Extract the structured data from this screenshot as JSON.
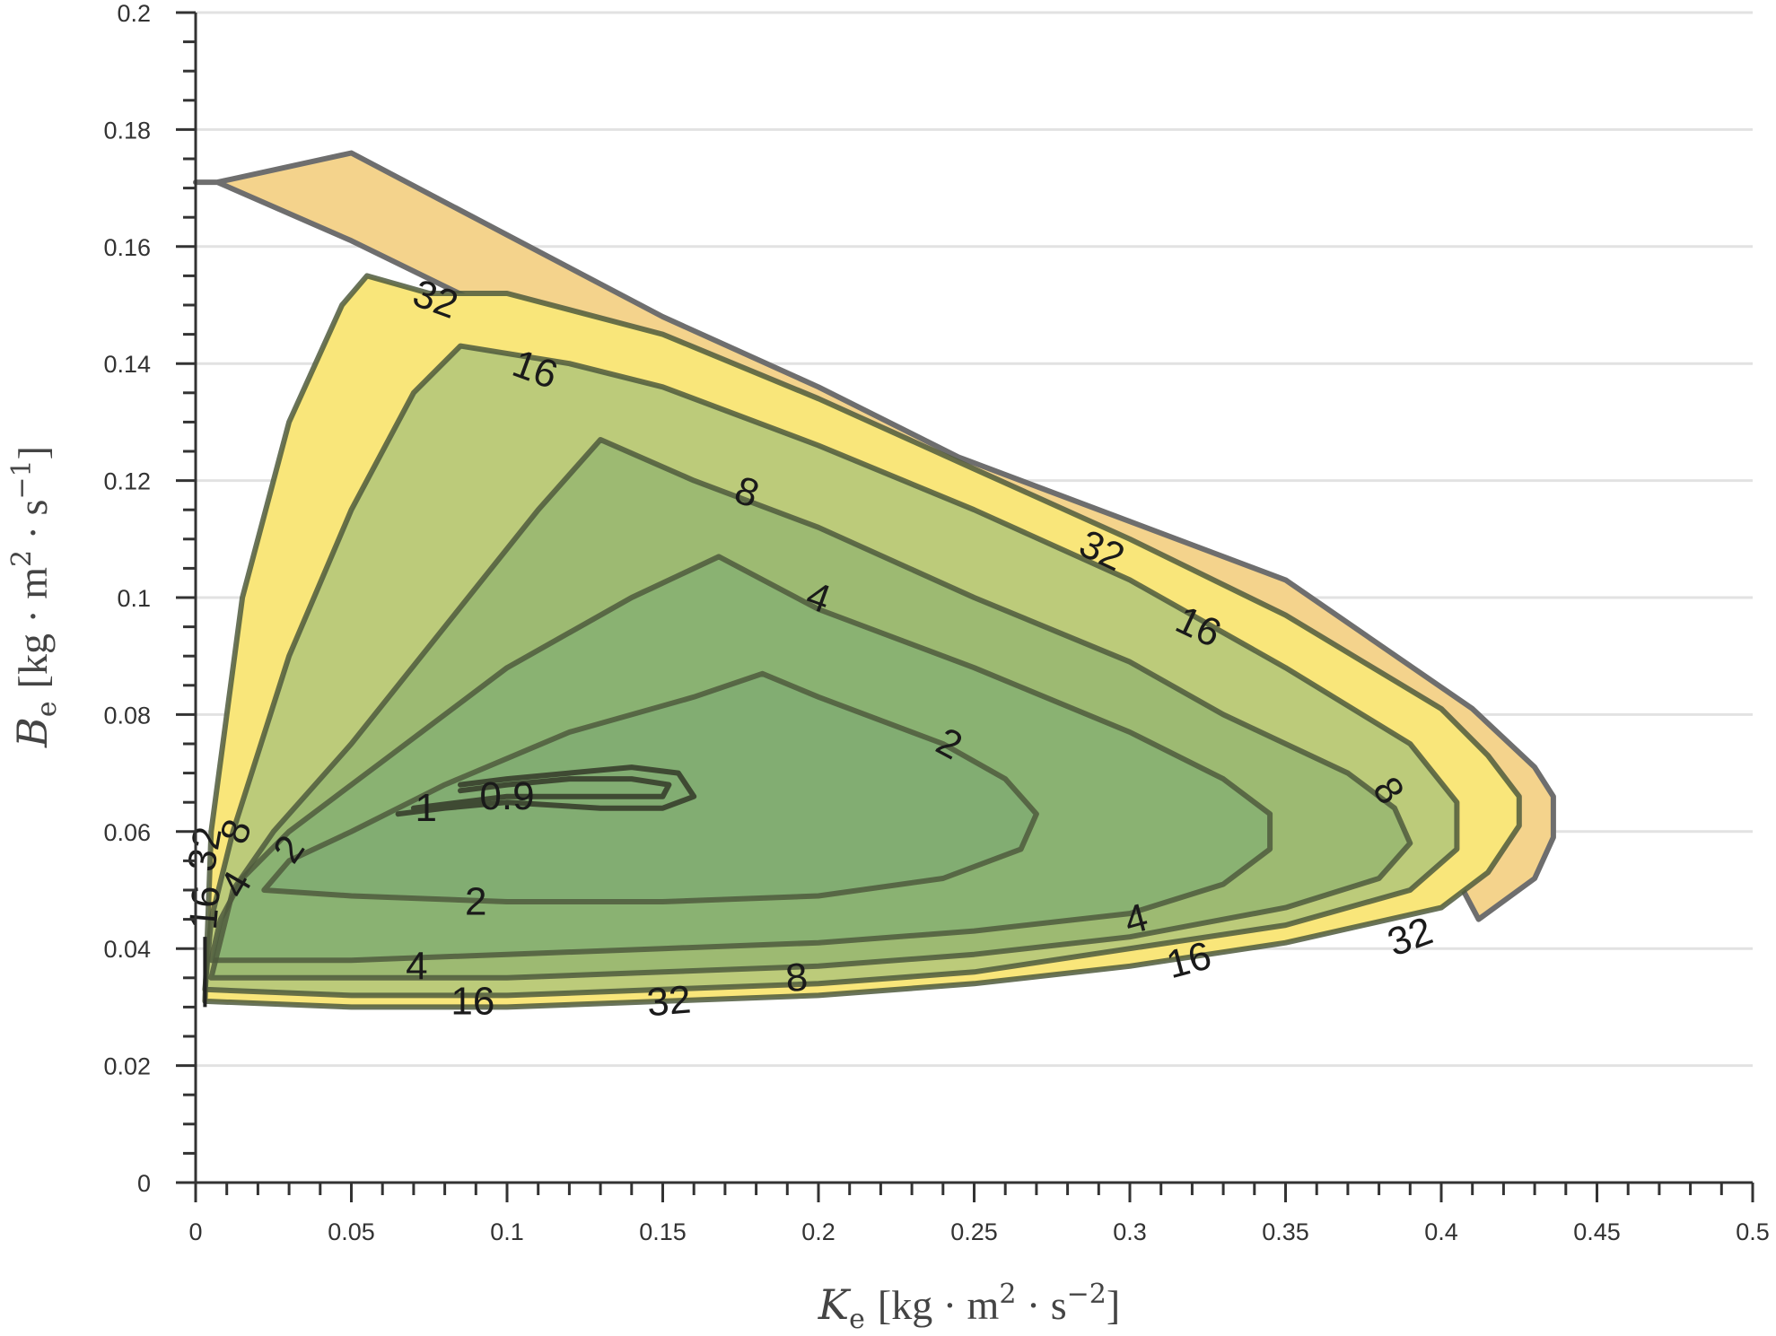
{
  "chart_data": {
    "type": "contour",
    "xlabel": {
      "symbol": "K",
      "sub": "e",
      "unit": "[kg · m",
      "sup1": "2",
      "mid": " · s",
      "sup2": "−2",
      "end": "]"
    },
    "ylabel": {
      "symbol": "B",
      "sub": "e",
      "unit": "[kg · m",
      "sup1": "2",
      "mid": " · s",
      "sup2": "−1",
      "end": "]"
    },
    "xlim": [
      0,
      0.5
    ],
    "ylim": [
      0,
      0.2
    ],
    "x_ticks": [
      "0",
      "0.05",
      "0.1",
      "0.15",
      "0.2",
      "0.25",
      "0.3",
      "0.35",
      "0.4",
      "0.45",
      "0.5"
    ],
    "y_ticks": [
      "0",
      "0.02",
      "0.04",
      "0.06",
      "0.08",
      "0.1",
      "0.12",
      "0.14",
      "0.16",
      "0.18",
      "0.2"
    ],
    "grid": "horizontal",
    "levels": [
      0.9,
      1,
      2,
      4,
      8,
      16,
      32
    ],
    "region_colors": {
      "outer": "#f4d38c",
      "band_32": "#f9e67a",
      "band_16": "#bccb7a",
      "band_8": "#9dba72",
      "band_4": "#8ab272",
      "inner": "#82ad72"
    },
    "contours": [
      {
        "id": "boundary",
        "fill": "outer",
        "points": [
          [
            0.0,
            0.171
          ],
          [
            0.007,
            0.171
          ],
          [
            0.05,
            0.161
          ],
          [
            0.1,
            0.148
          ],
          [
            0.15,
            0.135
          ],
          [
            0.2,
            0.121
          ],
          [
            0.245,
            0.107
          ],
          [
            0.3,
            0.092
          ],
          [
            0.35,
            0.075
          ],
          [
            0.4,
            0.057
          ],
          [
            0.412,
            0.045
          ],
          [
            0.43,
            0.052
          ],
          [
            0.436,
            0.059
          ],
          [
            0.436,
            0.066
          ],
          [
            0.43,
            0.071
          ],
          [
            0.41,
            0.081
          ],
          [
            0.35,
            0.103
          ],
          [
            0.3,
            0.113
          ],
          [
            0.245,
            0.124
          ],
          [
            0.2,
            0.136
          ],
          [
            0.15,
            0.148
          ],
          [
            0.1,
            0.162
          ],
          [
            0.05,
            0.176
          ],
          [
            0.007,
            0.171
          ]
        ]
      }
    ],
    "contour_lines": [
      {
        "level": "32",
        "fill": "band_32",
        "points": [
          [
            0.003,
            0.031
          ],
          [
            0.05,
            0.03
          ],
          [
            0.1,
            0.03
          ],
          [
            0.15,
            0.031
          ],
          [
            0.2,
            0.032
          ],
          [
            0.25,
            0.034
          ],
          [
            0.3,
            0.037
          ],
          [
            0.35,
            0.041
          ],
          [
            0.4,
            0.047
          ],
          [
            0.415,
            0.053
          ],
          [
            0.425,
            0.061
          ],
          [
            0.425,
            0.066
          ],
          [
            0.415,
            0.073
          ],
          [
            0.4,
            0.081
          ],
          [
            0.35,
            0.097
          ],
          [
            0.3,
            0.11
          ],
          [
            0.25,
            0.122
          ],
          [
            0.2,
            0.134
          ],
          [
            0.15,
            0.145
          ],
          [
            0.1,
            0.152
          ],
          [
            0.075,
            0.152
          ],
          [
            0.055,
            0.155
          ],
          [
            0.047,
            0.15
          ],
          [
            0.03,
            0.13
          ],
          [
            0.015,
            0.1
          ],
          [
            0.005,
            0.06
          ],
          [
            0.003,
            0.031
          ]
        ]
      },
      {
        "level": "16",
        "fill": "band_16",
        "points": [
          [
            0.003,
            0.033
          ],
          [
            0.05,
            0.032
          ],
          [
            0.1,
            0.032
          ],
          [
            0.15,
            0.033
          ],
          [
            0.2,
            0.034
          ],
          [
            0.25,
            0.036
          ],
          [
            0.3,
            0.04
          ],
          [
            0.35,
            0.044
          ],
          [
            0.39,
            0.05
          ],
          [
            0.405,
            0.057
          ],
          [
            0.405,
            0.065
          ],
          [
            0.39,
            0.075
          ],
          [
            0.35,
            0.088
          ],
          [
            0.3,
            0.103
          ],
          [
            0.25,
            0.115
          ],
          [
            0.2,
            0.126
          ],
          [
            0.15,
            0.136
          ],
          [
            0.12,
            0.14
          ],
          [
            0.085,
            0.143
          ],
          [
            0.07,
            0.135
          ],
          [
            0.05,
            0.115
          ],
          [
            0.03,
            0.09
          ],
          [
            0.012,
            0.06
          ],
          [
            0.005,
            0.045
          ],
          [
            0.003,
            0.033
          ]
        ]
      },
      {
        "level": "8",
        "fill": "band_8",
        "points": [
          [
            0.005,
            0.035
          ],
          [
            0.05,
            0.035
          ],
          [
            0.1,
            0.035
          ],
          [
            0.15,
            0.036
          ],
          [
            0.2,
            0.037
          ],
          [
            0.25,
            0.039
          ],
          [
            0.3,
            0.042
          ],
          [
            0.35,
            0.047
          ],
          [
            0.38,
            0.052
          ],
          [
            0.39,
            0.058
          ],
          [
            0.385,
            0.064
          ],
          [
            0.37,
            0.07
          ],
          [
            0.33,
            0.08
          ],
          [
            0.3,
            0.089
          ],
          [
            0.25,
            0.1
          ],
          [
            0.2,
            0.112
          ],
          [
            0.16,
            0.12
          ],
          [
            0.13,
            0.127
          ],
          [
            0.11,
            0.115
          ],
          [
            0.08,
            0.095
          ],
          [
            0.05,
            0.075
          ],
          [
            0.025,
            0.06
          ],
          [
            0.012,
            0.05
          ],
          [
            0.005,
            0.035
          ]
        ]
      },
      {
        "level": "4",
        "fill": "band_4",
        "points": [
          [
            0.005,
            0.038
          ],
          [
            0.05,
            0.038
          ],
          [
            0.1,
            0.039
          ],
          [
            0.15,
            0.04
          ],
          [
            0.2,
            0.041
          ],
          [
            0.25,
            0.043
          ],
          [
            0.3,
            0.046
          ],
          [
            0.33,
            0.051
          ],
          [
            0.345,
            0.057
          ],
          [
            0.345,
            0.063
          ],
          [
            0.33,
            0.069
          ],
          [
            0.3,
            0.077
          ],
          [
            0.25,
            0.088
          ],
          [
            0.2,
            0.098
          ],
          [
            0.168,
            0.107
          ],
          [
            0.14,
            0.1
          ],
          [
            0.1,
            0.088
          ],
          [
            0.06,
            0.072
          ],
          [
            0.03,
            0.06
          ],
          [
            0.015,
            0.052
          ],
          [
            0.008,
            0.045
          ],
          [
            0.005,
            0.038
          ]
        ]
      },
      {
        "level": "2",
        "fill": "inner",
        "points": [
          [
            0.022,
            0.05
          ],
          [
            0.05,
            0.049
          ],
          [
            0.1,
            0.048
          ],
          [
            0.15,
            0.048
          ],
          [
            0.2,
            0.049
          ],
          [
            0.24,
            0.052
          ],
          [
            0.265,
            0.057
          ],
          [
            0.27,
            0.063
          ],
          [
            0.26,
            0.069
          ],
          [
            0.24,
            0.075
          ],
          [
            0.2,
            0.083
          ],
          [
            0.182,
            0.087
          ],
          [
            0.16,
            0.083
          ],
          [
            0.12,
            0.077
          ],
          [
            0.08,
            0.068
          ],
          [
            0.05,
            0.06
          ],
          [
            0.03,
            0.055
          ],
          [
            0.022,
            0.05
          ]
        ]
      }
    ],
    "inner_lines": [
      {
        "level": "1",
        "points": [
          [
            0.065,
            0.063
          ],
          [
            0.08,
            0.064
          ],
          [
            0.1,
            0.065
          ],
          [
            0.13,
            0.064
          ],
          [
            0.15,
            0.064
          ],
          [
            0.16,
            0.066
          ],
          [
            0.155,
            0.07
          ],
          [
            0.14,
            0.071
          ],
          [
            0.12,
            0.07
          ],
          [
            0.1,
            0.069
          ],
          [
            0.085,
            0.068
          ]
        ]
      },
      {
        "level": "0.9",
        "points": [
          [
            0.07,
            0.064
          ],
          [
            0.1,
            0.066
          ],
          [
            0.13,
            0.066
          ],
          [
            0.15,
            0.066
          ],
          [
            0.152,
            0.068
          ],
          [
            0.14,
            0.069
          ],
          [
            0.12,
            0.069
          ],
          [
            0.1,
            0.068
          ],
          [
            0.085,
            0.067
          ]
        ]
      }
    ],
    "labels": [
      {
        "text": "32",
        "x": 0.077,
        "y": 0.151,
        "rot": 20
      },
      {
        "text": "16",
        "x": 0.109,
        "y": 0.139,
        "rot": 20
      },
      {
        "text": "8",
        "x": 0.177,
        "y": 0.118,
        "rot": 20
      },
      {
        "text": "4",
        "x": 0.2,
        "y": 0.1,
        "rot": 20
      },
      {
        "text": "2",
        "x": 0.242,
        "y": 0.075,
        "rot": 28
      },
      {
        "text": "32",
        "x": 0.291,
        "y": 0.108,
        "rot": 25
      },
      {
        "text": "16",
        "x": 0.322,
        "y": 0.095,
        "rot": 25
      },
      {
        "text": "8",
        "x": 0.383,
        "y": 0.067,
        "rot": 55
      },
      {
        "text": "4",
        "x": 0.302,
        "y": 0.045,
        "rot": -15
      },
      {
        "text": "16",
        "x": 0.319,
        "y": 0.038,
        "rot": -15
      },
      {
        "text": "32",
        "x": 0.39,
        "y": 0.042,
        "rot": -20
      },
      {
        "text": "8",
        "x": 0.193,
        "y": 0.035,
        "rot": -5
      },
      {
        "text": "32",
        "x": 0.152,
        "y": 0.031,
        "rot": -5
      },
      {
        "text": "16",
        "x": 0.089,
        "y": 0.031,
        "rot": 0
      },
      {
        "text": "4",
        "x": 0.071,
        "y": 0.037,
        "rot": 0
      },
      {
        "text": "2",
        "x": 0.09,
        "y": 0.048,
        "rot": 0
      },
      {
        "text": "2",
        "x": 0.03,
        "y": 0.057,
        "rot": -55
      },
      {
        "text": "1",
        "x": 0.074,
        "y": 0.064,
        "rot": 0
      },
      {
        "text": "0.9",
        "x": 0.1,
        "y": 0.066,
        "rot": 0
      },
      {
        "text": "8",
        "x": 0.013,
        "y": 0.06,
        "rot": -70
      },
      {
        "text": "32",
        "x": 0.003,
        "y": 0.057,
        "rot": -80
      },
      {
        "text": "16",
        "x": 0.003,
        "y": 0.047,
        "rot": -85
      },
      {
        "text": "4",
        "x": 0.013,
        "y": 0.051,
        "rot": -60
      }
    ]
  }
}
